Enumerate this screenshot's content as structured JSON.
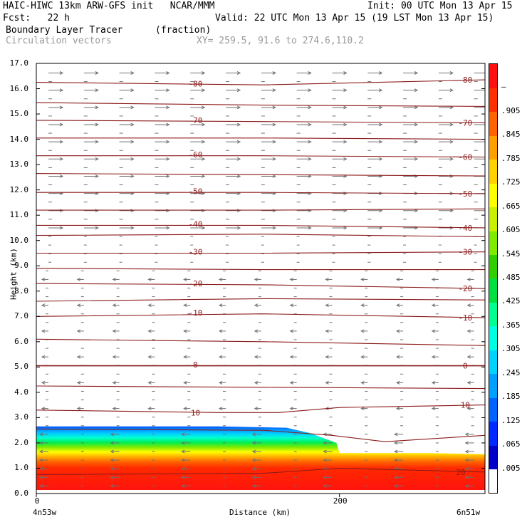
{
  "header": {
    "line1_left": "HAIC-HIWC 13km ARW-GFS init   NCAR/MMM",
    "line1_right": "Init: 00 UTC Mon 13 Apr 15",
    "line2_left": "Fcst:   22 h",
    "line2_right": "Valid: 22 UTC Mon 13 Apr 15 (19 LST Mon 13 Apr 15)",
    "field_name": "Boundary Layer Tracer",
    "field_units": "(fraction)",
    "vector_label": "Circulation vectors",
    "xy_label": "XY= 259.5, 91.6 to 274.6,110.2"
  },
  "chart_data": {
    "type": "heatmap",
    "title": "Boundary Layer Tracer",
    "units": "(fraction)",
    "xlabel": "Distance (km)",
    "ylabel": "Height (km)",
    "ylim": [
      0,
      17
    ],
    "xlim": [
      0,
      296
    ],
    "x_ticks": [
      {
        "value": 0,
        "label": "0"
      },
      {
        "value": 200,
        "label": "200"
      }
    ],
    "x_end_labels": {
      "left": "4n53w",
      "right": "6n51w"
    },
    "y_ticks": [
      "0.0",
      "1.0",
      "2.0",
      "3.0",
      "4.0",
      "5.0",
      "6.0",
      "7.0",
      "8.0",
      "9.0",
      "10.0",
      "11.0",
      "12.0",
      "13.0",
      "14.0",
      "15.0",
      "16.0",
      "17.0"
    ],
    "colorbar": {
      "labels": [
        ".005",
        ".065",
        ".125",
        ".185",
        ".245",
        ".305",
        ".365",
        ".425",
        ".485",
        ".545",
        ".605",
        ".665",
        ".725",
        ".785",
        ".845",
        ".905",
        "–"
      ],
      "colors": [
        "#ffffff",
        "#0000c8",
        "#0028ff",
        "#0064ff",
        "#00a0ff",
        "#00d2ff",
        "#00ffe0",
        "#00ff90",
        "#00e040",
        "#30d000",
        "#80ea00",
        "#c8f000",
        "#ffff00",
        "#ffd200",
        "#ffa000",
        "#ff6400",
        "#ff3000",
        "#ff1010"
      ]
    },
    "tracer_top_km": [
      {
        "x": 0,
        "z": 2.65
      },
      {
        "x": 120,
        "z": 2.65
      },
      {
        "x": 165,
        "z": 2.6
      },
      {
        "x": 180,
        "z": 2.4
      },
      {
        "x": 198,
        "z": 2.0
      },
      {
        "x": 200,
        "z": 1.6
      },
      {
        "x": 260,
        "z": 1.6
      },
      {
        "x": 296,
        "z": 1.55
      }
    ],
    "temperature_contours": [
      {
        "label": "-80",
        "points": [
          [
            0,
            16.25
          ],
          [
            150,
            16.15
          ],
          [
            296,
            16.35
          ]
        ]
      },
      {
        "label": "",
        "points": [
          [
            0,
            15.45
          ],
          [
            150,
            15.35
          ],
          [
            296,
            15.3
          ]
        ]
      },
      {
        "label": "-70",
        "points": [
          [
            0,
            14.75
          ],
          [
            150,
            14.7
          ],
          [
            296,
            14.65
          ]
        ]
      },
      {
        "label": "",
        "points": [
          [
            0,
            14.05
          ],
          [
            150,
            14.05
          ],
          [
            296,
            14.0
          ]
        ]
      },
      {
        "label": "-60",
        "points": [
          [
            0,
            13.35
          ],
          [
            150,
            13.35
          ],
          [
            296,
            13.3
          ]
        ]
      },
      {
        "label": "",
        "points": [
          [
            0,
            12.65
          ],
          [
            150,
            12.6
          ],
          [
            296,
            12.55
          ]
        ]
      },
      {
        "label": "-50",
        "points": [
          [
            0,
            11.9
          ],
          [
            150,
            11.9
          ],
          [
            296,
            11.85
          ]
        ]
      },
      {
        "label": "",
        "points": [
          [
            0,
            11.2
          ],
          [
            150,
            11.2
          ],
          [
            296,
            11.25
          ]
        ]
      },
      {
        "label": "-40",
        "points": [
          [
            0,
            10.6
          ],
          [
            150,
            10.6
          ],
          [
            296,
            10.5
          ]
        ]
      },
      {
        "label": "",
        "points": [
          [
            0,
            10.2
          ],
          [
            150,
            10.25
          ],
          [
            296,
            10.15
          ]
        ]
      },
      {
        "label": "-30",
        "points": [
          [
            0,
            9.5
          ],
          [
            150,
            9.5
          ],
          [
            296,
            9.55
          ]
        ]
      },
      {
        "label": "",
        "points": [
          [
            0,
            8.9
          ],
          [
            150,
            8.85
          ],
          [
            296,
            8.85
          ]
        ]
      },
      {
        "label": "-20",
        "points": [
          [
            0,
            8.3
          ],
          [
            150,
            8.25
          ],
          [
            296,
            8.1
          ]
        ]
      },
      {
        "label": "",
        "points": [
          [
            0,
            7.6
          ],
          [
            150,
            7.7
          ],
          [
            296,
            7.65
          ]
        ]
      },
      {
        "label": "-10",
        "points": [
          [
            0,
            7.0
          ],
          [
            150,
            7.1
          ],
          [
            296,
            6.95
          ]
        ]
      },
      {
        "label": "",
        "points": [
          [
            0,
            6.1
          ],
          [
            150,
            6.0
          ],
          [
            296,
            5.85
          ]
        ]
      },
      {
        "label": "0",
        "points": [
          [
            0,
            5.05
          ],
          [
            150,
            5.05
          ],
          [
            296,
            5.05
          ]
        ]
      },
      {
        "label": "",
        "points": [
          [
            0,
            4.25
          ],
          [
            150,
            4.2
          ],
          [
            296,
            4.15
          ]
        ]
      },
      {
        "label": "10",
        "points": [
          [
            0,
            3.3
          ],
          [
            120,
            3.2
          ],
          [
            160,
            3.2
          ],
          [
            200,
            3.4
          ],
          [
            296,
            3.5
          ]
        ]
      },
      {
        "label": "",
        "points": [
          [
            0,
            2.55
          ],
          [
            150,
            2.5
          ],
          [
            195,
            2.3
          ],
          [
            230,
            2.05
          ],
          [
            296,
            2.3
          ]
        ]
      },
      {
        "label": "20",
        "points": [
          [
            0,
            0.75
          ],
          [
            150,
            0.8
          ],
          [
            200,
            1.0
          ],
          [
            296,
            0.85
          ]
        ]
      }
    ],
    "wind_vectors": {
      "upper_direction": "east",
      "lower_direction": "west",
      "transition_height_km": 9.0
    }
  }
}
